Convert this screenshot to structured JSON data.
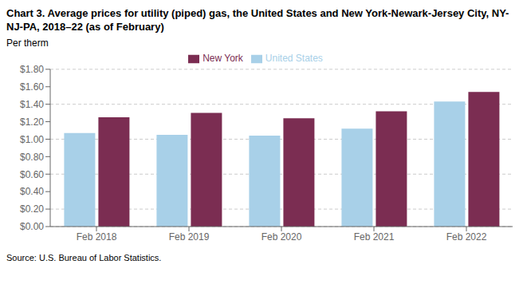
{
  "chart_data": {
    "type": "bar",
    "title": "Chart 3. Average prices for utility (piped) gas, the United States and New York-Newark-Jersey City, NY-NJ-PA, 2018–22 (as of February)",
    "ylabel": "Per therm",
    "annotations": [
      "Source: U.S. Bureau of Labor Statistics."
    ],
    "categories": [
      "Feb 2018",
      "Feb 2019",
      "Feb 2020",
      "Feb 2021",
      "Feb 2022"
    ],
    "series": [
      {
        "name": "United States",
        "color": "#a8d0e8",
        "values": [
          1.07,
          1.05,
          1.04,
          1.12,
          1.43
        ]
      },
      {
        "name": "New York",
        "color": "#7b2d52",
        "values": [
          1.25,
          1.3,
          1.24,
          1.32,
          1.54
        ]
      }
    ],
    "ylim": [
      0,
      1.8
    ],
    "yticks": [
      {
        "value": 0.0,
        "label": "$0.00"
      },
      {
        "value": 0.2,
        "label": "$0.20"
      },
      {
        "value": 0.4,
        "label": "$0.40"
      },
      {
        "value": 0.6,
        "label": "$0.60"
      },
      {
        "value": 0.8,
        "label": "$0.80"
      },
      {
        "value": 1.0,
        "label": "$1.00"
      },
      {
        "value": 1.2,
        "label": "$1.20"
      },
      {
        "value": 1.4,
        "label": "$1.40"
      },
      {
        "value": 1.6,
        "label": "$1.60"
      },
      {
        "value": 1.8,
        "label": "$1.80"
      }
    ],
    "grid": true,
    "legend": "top"
  }
}
